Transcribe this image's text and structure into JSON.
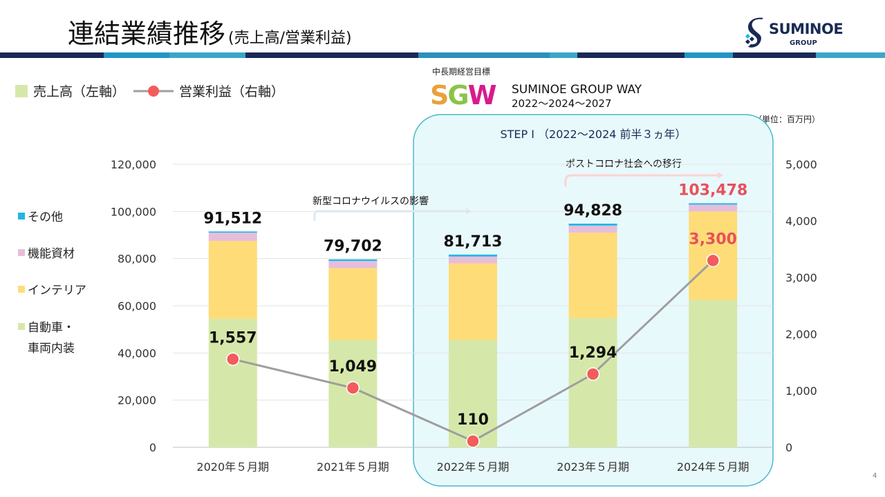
{
  "header": {
    "title": "連結業績推移",
    "subtitle": "(売上高/営業利益)",
    "logo_name": "SUMINOE",
    "logo_group": "GROUP",
    "page_number": "4"
  },
  "top_legend": {
    "sales": "売上高（左軸）",
    "profit": "営業利益（右軸）"
  },
  "goal": {
    "label": "中長期経営目標",
    "sgw_letters": [
      "S",
      "G",
      "W"
    ],
    "name": "SUMINOE GROUP WAY",
    "years": "2022～2024～2027"
  },
  "unit": "（単位：百万円）",
  "side_legend": [
    {
      "label": "その他",
      "color": "#1fb8e3"
    },
    {
      "label": "機能資材",
      "color": "#e6bedb"
    },
    {
      "label": "インテリア",
      "color": "#fedd78"
    },
    {
      "label": "自動車・",
      "color": "#d6e8a9"
    },
    {
      "label": "車両内装",
      "color": null
    }
  ],
  "annotations": {
    "step": "STEP Ⅰ （2022～2024 前半３ヵ年）",
    "covid": "新型コロナウイルスの影響",
    "post_covid": "ポストコロナ社会への移行"
  },
  "chart_data": {
    "type": "bar",
    "stacked": true,
    "categories": [
      "2020年５月期",
      "2021年５月期",
      "2022年５月期",
      "2023年５月期",
      "2024年５月期"
    ],
    "series": [
      {
        "name": "自動車・車両内装",
        "color": "#d6e8a9",
        "values": [
          54500,
          45500,
          45500,
          54800,
          62500
        ]
      },
      {
        "name": "インテリア",
        "color": "#fedd78",
        "values": [
          33000,
          30500,
          32500,
          36200,
          37500
        ]
      },
      {
        "name": "機能資材",
        "color": "#e6bedb",
        "values": [
          3500,
          3000,
          2900,
          3000,
          2900
        ]
      },
      {
        "name": "その他",
        "color": "#1fb8e3",
        "values": [
          512,
          702,
          813,
          828,
          578
        ]
      }
    ],
    "totals": [
      91512,
      79702,
      81713,
      94828,
      103478
    ],
    "total_labels": [
      "91,512",
      "79,702",
      "81,713",
      "94,828",
      "103,478"
    ],
    "line": {
      "name": "営業利益",
      "axis": "right",
      "color": "#9e9e9e",
      "marker_color": "#f25c5c",
      "values": [
        1557,
        1049,
        110,
        1294,
        3300
      ],
      "labels": [
        "1,557",
        "1,049",
        "110",
        "1,294",
        "3,300"
      ]
    },
    "ylim": [
      0,
      120000
    ],
    "y_ticks": [
      "0",
      "20,000",
      "40,000",
      "60,000",
      "80,000",
      "100,000",
      "120,000"
    ],
    "y2lim": [
      0,
      5000
    ],
    "y2_ticks": [
      "0",
      "1,000",
      "2,000",
      "3,000",
      "4,000",
      "5,000"
    ],
    "highlight_color": "#e8505b",
    "grid": true
  }
}
